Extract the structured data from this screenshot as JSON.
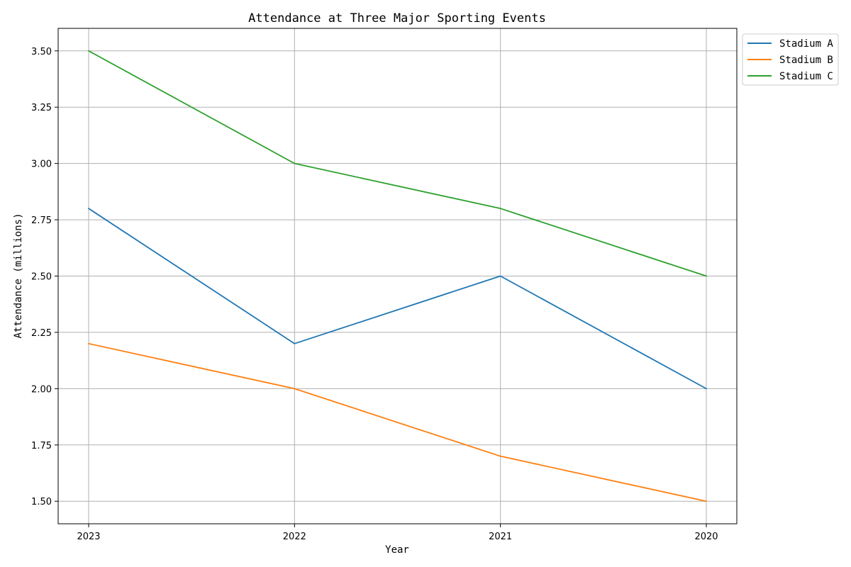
{
  "chart_data": {
    "type": "line",
    "title": "Attendance at Three Major Sporting Events",
    "xlabel": "Year",
    "ylabel": "Attendance (millions)",
    "categories": [
      "2023",
      "2022",
      "2021",
      "2020"
    ],
    "ylim": [
      1.4,
      3.6
    ],
    "yticks": [
      "1.50",
      "1.75",
      "2.00",
      "2.25",
      "2.50",
      "2.75",
      "3.00",
      "3.25",
      "3.50"
    ],
    "grid": true,
    "legend_position": "outside-top-right",
    "series": [
      {
        "name": "Stadium A",
        "color": "#1f77b4",
        "values": [
          2.8,
          2.2,
          2.5,
          2.0
        ]
      },
      {
        "name": "Stadium B",
        "color": "#ff7f0e",
        "values": [
          2.2,
          2.0,
          1.7,
          1.5
        ]
      },
      {
        "name": "Stadium C",
        "color": "#2ca02c",
        "values": [
          3.5,
          3.0,
          2.8,
          2.5
        ]
      }
    ]
  }
}
